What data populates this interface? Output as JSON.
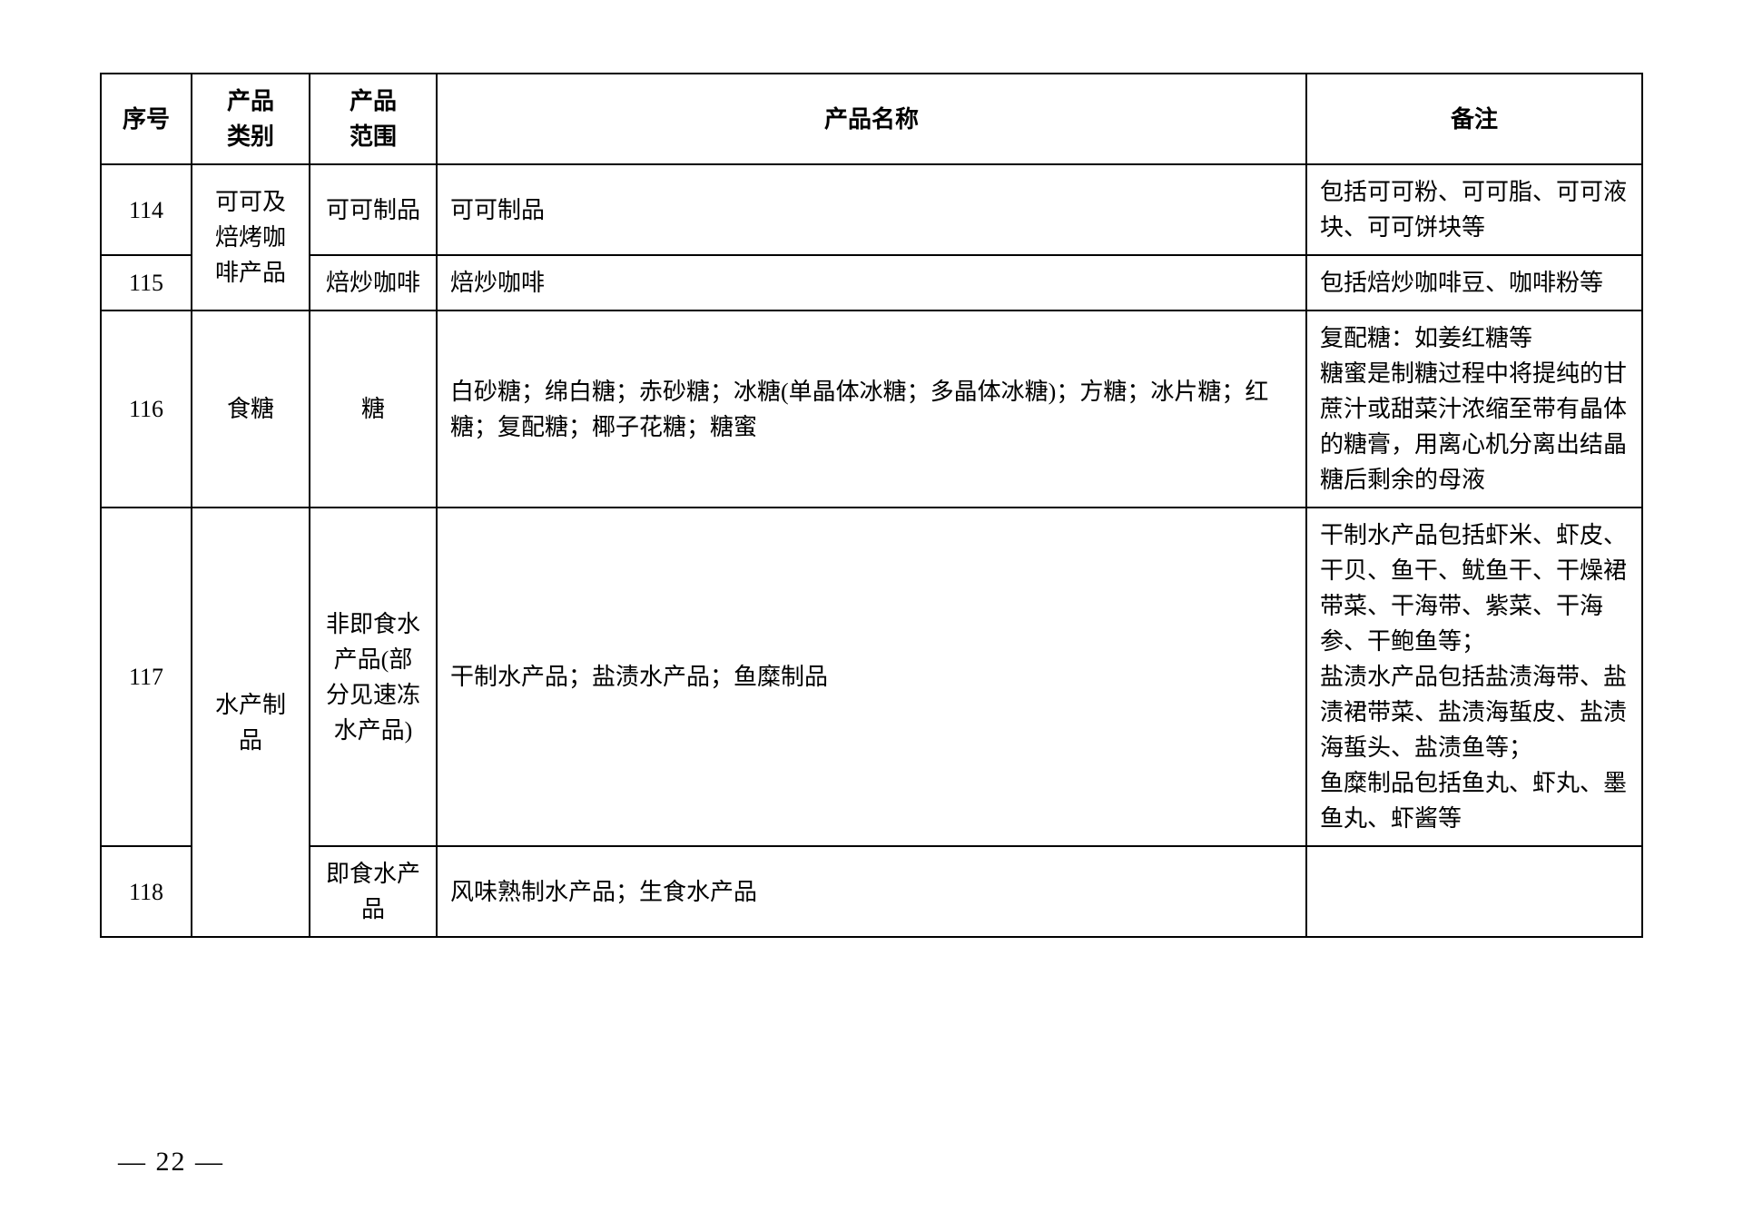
{
  "table": {
    "headers": {
      "seq": "序号",
      "category": "产品\n类别",
      "scope": "产品\n范围",
      "name": "产品名称",
      "remark": "备注"
    },
    "rows": [
      {
        "seq": "114",
        "category": "可可及焙烤咖啡产品",
        "scope": "可可制品",
        "name": "可可制品",
        "remark": "包括可可粉、可可脂、可可液块、可可饼块等"
      },
      {
        "seq": "115",
        "scope": "焙炒咖啡",
        "name": "焙炒咖啡",
        "remark": "包括焙炒咖啡豆、咖啡粉等"
      },
      {
        "seq": "116",
        "category": "食糖",
        "scope": "糖",
        "name": "白砂糖；绵白糖；赤砂糖；冰糖(单晶体冰糖；多晶体冰糖)；方糖；冰片糖；红糖；复配糖；椰子花糖；糖蜜",
        "remark": "复配糖：如姜红糖等\n糖蜜是制糖过程中将提纯的甘蔗汁或甜菜汁浓缩至带有晶体的糖膏，用离心机分离出结晶糖后剩余的母液"
      },
      {
        "seq": "117",
        "category": "水产制品",
        "scope": "非即食水产品(部分见速冻水产品)",
        "name": "干制水产品；盐渍水产品；鱼糜制品",
        "remark": "干制水产品包括虾米、虾皮、干贝、鱼干、鱿鱼干、干燥裙带菜、干海带、紫菜、干海参、干鲍鱼等；\n盐渍水产品包括盐渍海带、盐渍裙带菜、盐渍海蜇皮、盐渍海蜇头、盐渍鱼等；\n鱼糜制品包括鱼丸、虾丸、墨鱼丸、虾酱等"
      },
      {
        "seq": "118",
        "scope": "即食水产品",
        "name": "风味熟制水产品；生食水产品",
        "remark": ""
      }
    ]
  },
  "pageNumber": "— 22 —"
}
